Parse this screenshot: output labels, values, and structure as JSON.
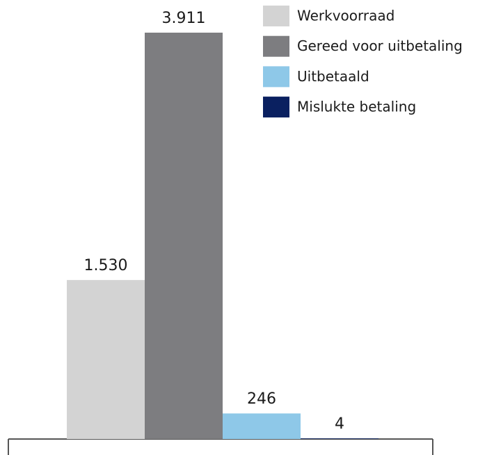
{
  "chart_data": {
    "type": "bar",
    "series": [
      {
        "name": "Werkvoorraad",
        "color": "#d3d3d3",
        "values": [
          1530
        ],
        "value_labels": [
          "1.530"
        ]
      },
      {
        "name": "Gereed voor uitbetaling",
        "color": "#7d7d80",
        "values": [
          3911
        ],
        "value_labels": [
          "3.911"
        ]
      },
      {
        "name": "Uitbetaald",
        "color": "#8ec8e8",
        "values": [
          246
        ],
        "value_labels": [
          "246"
        ]
      },
      {
        "name": "Mislukte betaling",
        "color": "#0a2060",
        "values": [
          4
        ],
        "value_labels": [
          "4"
        ]
      }
    ]
  }
}
